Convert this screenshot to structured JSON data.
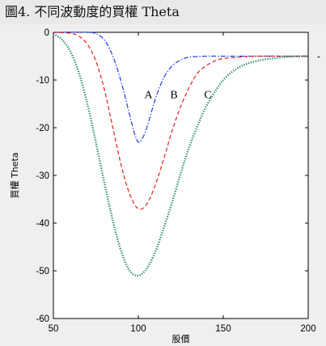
{
  "caption": "圖4. 不同波動度的買權 Theta",
  "chart_data": {
    "type": "line",
    "title": "",
    "xlabel": "股價",
    "ylabel": "買權 Theta",
    "xlim": [
      50,
      200
    ],
    "ylim": [
      -60,
      0
    ],
    "xticks": [
      50,
      100,
      150,
      200
    ],
    "yticks": [
      0,
      -10,
      -20,
      -30,
      -40,
      -50,
      -60
    ],
    "grid": false,
    "series": [
      {
        "name": "A",
        "style": "dash-dot",
        "color": "#1f3fe0",
        "x": [
          50,
          70,
          75,
          80,
          85,
          90,
          95,
          98,
          100,
          102,
          105,
          110,
          115,
          120,
          125,
          130,
          140,
          150,
          170,
          200
        ],
        "y": [
          0,
          0,
          -0.3,
          -1.6,
          -5,
          -10.5,
          -17.5,
          -21.5,
          -23,
          -22.5,
          -20,
          -14,
          -9.5,
          -7,
          -5.8,
          -5.2,
          -5.0,
          -5.0,
          -5.0,
          -5.0
        ]
      },
      {
        "name": "B",
        "style": "dashed",
        "color": "#e02020",
        "x": [
          50,
          60,
          65,
          70,
          75,
          80,
          85,
          90,
          95,
          100,
          105,
          110,
          115,
          120,
          125,
          130,
          135,
          140,
          145,
          150,
          160,
          170,
          200
        ],
        "y": [
          0,
          -0.2,
          -0.8,
          -2.5,
          -6,
          -12,
          -20,
          -28,
          -34,
          -37,
          -36,
          -32,
          -26.5,
          -20.5,
          -15.5,
          -11.5,
          -8.5,
          -7,
          -6,
          -5.5,
          -5.2,
          -5.0,
          -5.0
        ]
      },
      {
        "name": "C",
        "style": "dotted",
        "color": "#2a8a6a",
        "x": [
          50,
          55,
          60,
          65,
          70,
          75,
          80,
          85,
          90,
          95,
          100,
          105,
          110,
          115,
          120,
          125,
          130,
          135,
          140,
          150,
          160,
          170,
          180,
          190,
          200
        ],
        "y": [
          -0.3,
          -1.5,
          -4,
          -8.5,
          -15,
          -23,
          -31.5,
          -39.5,
          -46,
          -50,
          -51,
          -49.5,
          -46,
          -41,
          -35.5,
          -29.5,
          -24,
          -19.5,
          -15.5,
          -10,
          -7.2,
          -6,
          -5.4,
          -5.1,
          -5.0
        ]
      }
    ],
    "annotations": [
      {
        "text": "A",
        "x": 106,
        "y": -13
      },
      {
        "text": "B",
        "x": 121,
        "y": -13
      },
      {
        "text": "C",
        "x": 141,
        "y": -13
      }
    ]
  }
}
